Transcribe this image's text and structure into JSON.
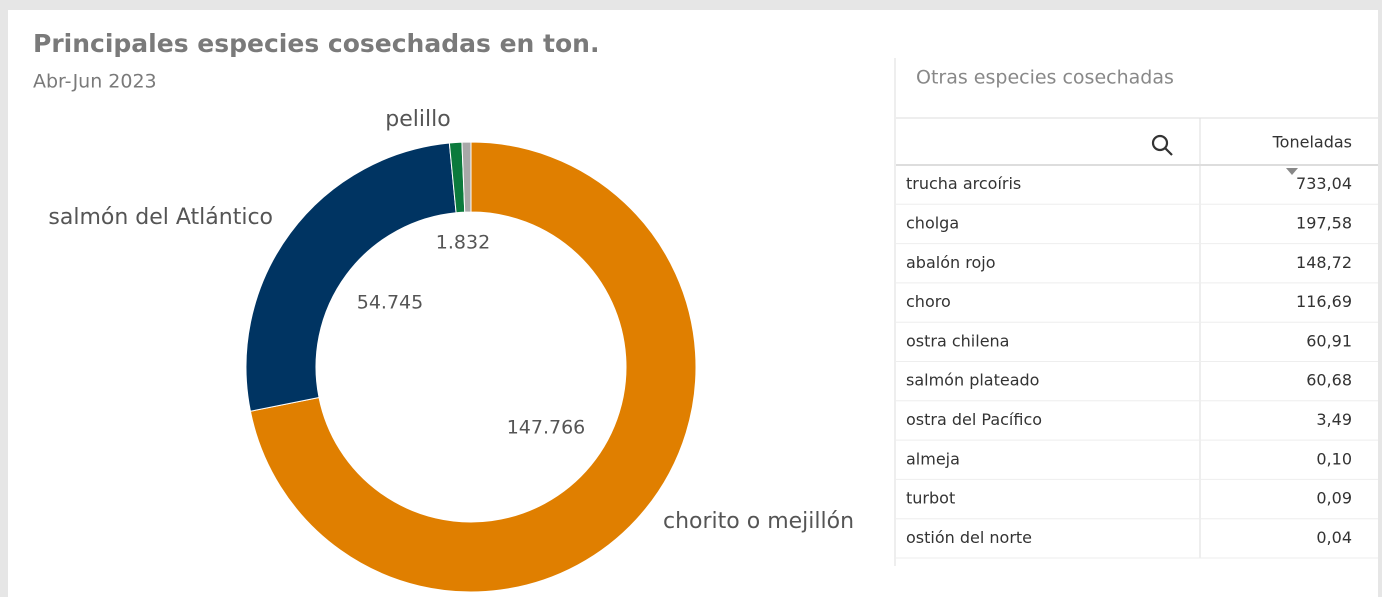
{
  "chart_data": {
    "type": "donut",
    "title": "Principales especies cosechadas en ton.",
    "subtitle": "Abr-Jun 2023",
    "categories": [
      "chorito o mejillón",
      "salmón del Atlántico",
      "pelillo",
      null
    ],
    "values": [
      147766,
      54745,
      1832,
      1321
    ],
    "value_labels": [
      "147.766",
      "54.745",
      "1.832",
      null
    ],
    "colors": [
      "#e07f00",
      "#003462",
      "#0b7a3c",
      "#a8a8a8"
    ]
  },
  "table": {
    "title": "Otras especies cosechadas",
    "header": "Toneladas",
    "rows": [
      [
        "trucha arcoíris",
        "733,04"
      ],
      [
        "cholga",
        "197,58"
      ],
      [
        "abalón rojo",
        "148,72"
      ],
      [
        "choro",
        "116,69"
      ],
      [
        "ostra chilena",
        "60,91"
      ],
      [
        "salmón plateado",
        "60,68"
      ],
      [
        "ostra del Pacífico",
        "3,49"
      ],
      [
        "almeja",
        "0,10"
      ],
      [
        "turbot",
        "0,09"
      ],
      [
        "ostión del norte",
        "0,04"
      ]
    ]
  }
}
